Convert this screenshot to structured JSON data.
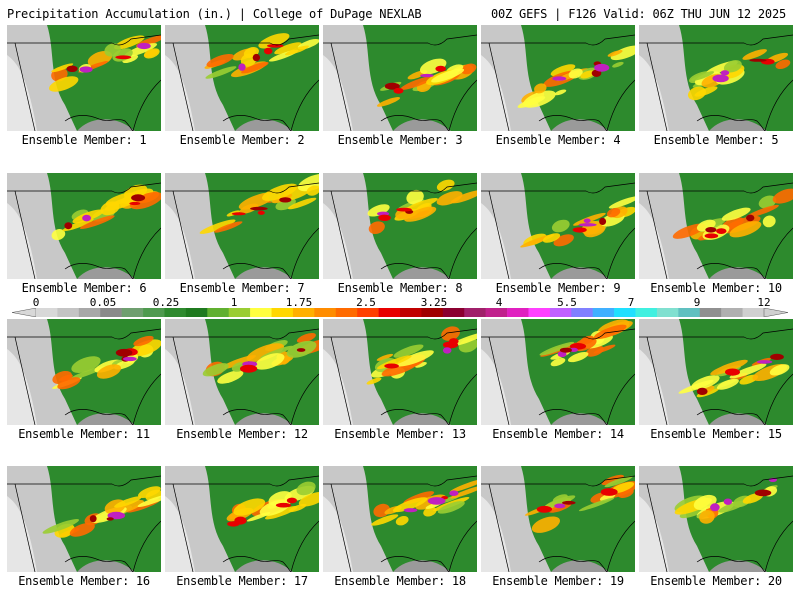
{
  "header": {
    "title_left": "Precipitation Accumulation (in.) | College of DuPage NEXLAB",
    "title_right": "00Z GEFS | F126 Valid: 06Z THU JUN 12 2025"
  },
  "panels": [
    {
      "label": "Ensemble Member: 1"
    },
    {
      "label": "Ensemble Member: 2"
    },
    {
      "label": "Ensemble Member: 3"
    },
    {
      "label": "Ensemble Member: 4"
    },
    {
      "label": "Ensemble Member: 5"
    },
    {
      "label": "Ensemble Member: 6"
    },
    {
      "label": "Ensemble Member: 7"
    },
    {
      "label": "Ensemble Member: 8"
    },
    {
      "label": "Ensemble Member: 9"
    },
    {
      "label": "Ensemble Member: 10"
    },
    {
      "label": "Ensemble Member: 11"
    },
    {
      "label": "Ensemble Member: 12"
    },
    {
      "label": "Ensemble Member: 13"
    },
    {
      "label": "Ensemble Member: 14"
    },
    {
      "label": "Ensemble Member: 15"
    },
    {
      "label": "Ensemble Member: 16"
    },
    {
      "label": "Ensemble Member: 17"
    },
    {
      "label": "Ensemble Member: 18"
    },
    {
      "label": "Ensemble Member: 19"
    },
    {
      "label": "Ensemble Member: 20"
    }
  ],
  "colorbar": {
    "tick_labels": [
      "0",
      "0.05",
      "0.25",
      "1",
      "1.75",
      "2.5",
      "3.25",
      "4",
      "5.5",
      "7",
      "9",
      "12"
    ],
    "colors": [
      "#d8d8d8",
      "#c4c4c4",
      "#a8a8a8",
      "#8a8a8a",
      "#6f9f6f",
      "#4f9a4f",
      "#2f8a2f",
      "#1f7a1f",
      "#60b030",
      "#9acd32",
      "#ffff40",
      "#ffd700",
      "#ffb000",
      "#ff8c00",
      "#ff6a00",
      "#ff4000",
      "#e80000",
      "#c00000",
      "#a00000",
      "#8b0030",
      "#a0206a",
      "#c0208c",
      "#e020c0",
      "#ff40ff",
      "#c060ff",
      "#8080ff",
      "#40b0ff",
      "#20e0ff",
      "#40f0e0",
      "#80e0d0",
      "#60c0c0",
      "#909090",
      "#b0b0b0",
      "#d0d0d0"
    ]
  }
}
